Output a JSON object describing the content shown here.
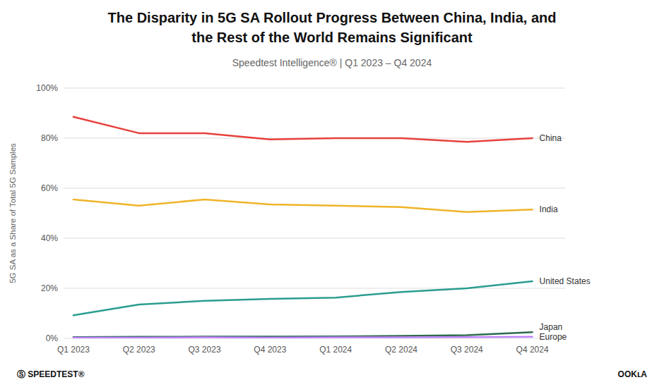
{
  "chart_data": {
    "type": "line",
    "title": [
      "The Disparity in 5G SA Rollout Progress Between China, India, and",
      "the Rest of the World Remains Significant"
    ],
    "subtitle": "Speedtest Intelligence® | Q1 2023 – Q4 2024",
    "ylabel": "5G SA as a Share of Total 5G Samples",
    "categories": [
      "Q1 2023",
      "Q2 2023",
      "Q3 2023",
      "Q4 2023",
      "Q1 2024",
      "Q2 2024",
      "Q3 2024",
      "Q4 2024"
    ],
    "series": [
      {
        "name": "China",
        "color": "#E8413C",
        "values": [
          0.885,
          0.82,
          0.82,
          0.795,
          0.8,
          0.8,
          0.785,
          0.8
        ]
      },
      {
        "name": "India",
        "color": "#F0B429",
        "values": [
          0.555,
          0.53,
          0.555,
          0.535,
          0.53,
          0.525,
          0.505,
          0.515
        ]
      },
      {
        "name": "United States",
        "color": "#2A9D8F",
        "values": [
          0.092,
          0.135,
          0.15,
          0.158,
          0.163,
          0.185,
          0.2,
          0.228
        ]
      },
      {
        "name": "Japan",
        "color": "#2D6A4F",
        "values": [
          0.005,
          0.006,
          0.007,
          0.007,
          0.008,
          0.01,
          0.013,
          0.025
        ]
      },
      {
        "name": "Europe",
        "color": "#C084FC",
        "values": [
          0.003,
          0.003,
          0.004,
          0.003,
          0.004,
          0.004,
          0.005,
          0.006
        ]
      }
    ],
    "ylim": [
      0,
      1.0
    ],
    "yticks": [
      {
        "value": 0.0,
        "label": "0%"
      },
      {
        "value": 0.2,
        "label": "20%"
      },
      {
        "value": 0.4,
        "label": "40%"
      },
      {
        "value": 0.6,
        "label": "60%"
      },
      {
        "value": 0.8,
        "label": "80%"
      },
      {
        "value": 1.0,
        "label": "100%"
      }
    ],
    "grid": true,
    "annotations": [
      "Ⓢ SPEEDTEST®",
      "OOKʟA"
    ]
  }
}
